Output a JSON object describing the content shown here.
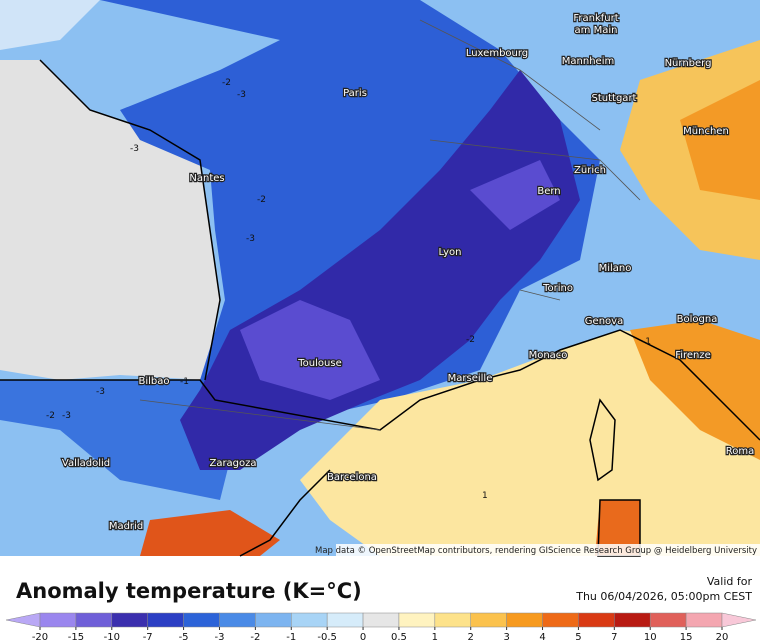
{
  "map": {
    "labels": [
      "Frankfurt",
      "am Main",
      "Luxembourg",
      "Mannheim",
      "Nürnberg",
      "Paris",
      "Stuttgart",
      "München",
      "Nantes",
      "Zürich",
      "Bern",
      "Lyon",
      "Milano",
      "Torino",
      "Genova",
      "Bologna",
      "Toulouse",
      "Monaco",
      "Firenze",
      "Marseille",
      "Bilbao",
      "Roma",
      "Zaragoza",
      "Valladolid",
      "Barcelona",
      "Madrid"
    ],
    "contour_labels": [
      "-2",
      "-3",
      "-3",
      "-2",
      "-3",
      "-1",
      "-2",
      "-3",
      "-3",
      "-2",
      "-1",
      "1"
    ],
    "attribution": "Map data © OpenStreetMap contributors, rendering GIScience Research Group @ Heidelberg University"
  },
  "footer": {
    "title": "Anomaly temperature (K=°C)",
    "valid_for": "Valid for",
    "date": "Thu 06/04/2026, 05:00pm CEST"
  },
  "legend": {
    "ticks": [
      -20,
      -15,
      -10,
      -7,
      -5,
      -3,
      -2,
      -1,
      -0.5,
      0,
      0.5,
      1,
      2,
      3,
      4,
      5,
      7,
      10,
      15,
      20
    ],
    "colors": [
      "#b9a8f5",
      "#9a86ee",
      "#6f5fd8",
      "#3b2fae",
      "#2b3fc4",
      "#2c63d8",
      "#4a8ae6",
      "#7cb4f0",
      "#a8d4f6",
      "#d6ecfa",
      "#e6e6e6",
      "#fff3c0",
      "#fde28a",
      "#fbc24d",
      "#f79a1f",
      "#ee6a17",
      "#d93a14",
      "#b81a12",
      "#e0605a",
      "#f4a6b0",
      "#f8c8d8"
    ]
  }
}
